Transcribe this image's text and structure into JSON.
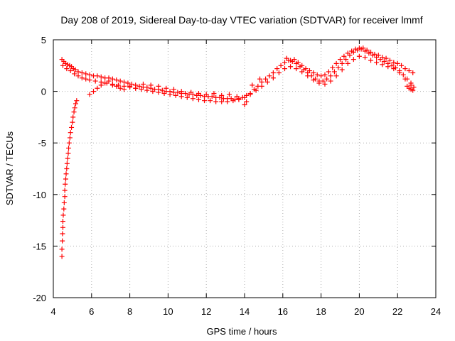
{
  "chart_data": {
    "type": "scatter",
    "title": "Day 208 of 2019, Sidereal Day-to-day VTEC variation (SDTVAR) for receiver lmmf",
    "xlabel": "GPS time / hours",
    "ylabel": "SDTVAR / TECUs",
    "xlim": [
      4,
      24
    ],
    "ylim": [
      -20,
      5
    ],
    "xticks": [
      4,
      6,
      8,
      10,
      12,
      14,
      16,
      18,
      20,
      22,
      24
    ],
    "yticks": [
      -20,
      -15,
      -10,
      -5,
      0,
      5
    ],
    "xtick_labels": [
      "4",
      "6",
      "8",
      "10",
      "12",
      "14",
      "16",
      "18",
      "20",
      "22",
      "24"
    ],
    "ytick_labels": [
      "-20",
      "-15",
      "-10",
      "-5",
      "0",
      "5"
    ],
    "grid": true,
    "marker": "+",
    "series": [
      {
        "name": "SDTVAR",
        "color": "#ff0000",
        "points": [
          [
            4.45,
            -16.0
          ],
          [
            4.45,
            -15.3
          ],
          [
            4.47,
            -14.5
          ],
          [
            4.48,
            -13.8
          ],
          [
            4.5,
            -13.2
          ],
          [
            4.5,
            -12.6
          ],
          [
            4.52,
            -12.0
          ],
          [
            4.55,
            -11.4
          ],
          [
            4.57,
            -10.8
          ],
          [
            4.6,
            -10.2
          ],
          [
            4.6,
            -9.6
          ],
          [
            4.62,
            -9.0
          ],
          [
            4.65,
            -8.5
          ],
          [
            4.67,
            -8.0
          ],
          [
            4.7,
            -7.5
          ],
          [
            4.72,
            -7.0
          ],
          [
            4.75,
            -6.5
          ],
          [
            4.78,
            -6.0
          ],
          [
            4.8,
            -5.5
          ],
          [
            4.83,
            -5.0
          ],
          [
            4.87,
            -4.5
          ],
          [
            4.9,
            -4.0
          ],
          [
            4.95,
            -3.5
          ],
          [
            5.0,
            -3.0
          ],
          [
            5.03,
            -2.5
          ],
          [
            5.08,
            -2.0
          ],
          [
            5.12,
            -1.6
          ],
          [
            5.17,
            -1.2
          ],
          [
            5.22,
            -0.9
          ],
          [
            4.45,
            3.1
          ],
          [
            4.55,
            2.9
          ],
          [
            4.65,
            2.7
          ],
          [
            4.75,
            2.6
          ],
          [
            4.85,
            2.5
          ],
          [
            4.95,
            2.4
          ],
          [
            5.05,
            2.2
          ],
          [
            5.15,
            2.1
          ],
          [
            5.3,
            1.9
          ],
          [
            5.5,
            1.8
          ],
          [
            5.7,
            1.7
          ],
          [
            5.9,
            1.6
          ],
          [
            6.1,
            1.5
          ],
          [
            6.3,
            1.5
          ],
          [
            6.5,
            1.4
          ],
          [
            6.7,
            1.3
          ],
          [
            6.9,
            1.3
          ],
          [
            7.1,
            1.2
          ],
          [
            7.3,
            1.1
          ],
          [
            7.5,
            1.0
          ],
          [
            7.7,
            0.9
          ],
          [
            7.9,
            0.8
          ],
          [
            8.1,
            0.7
          ],
          [
            8.3,
            0.6
          ],
          [
            8.5,
            0.5
          ],
          [
            8.7,
            0.4
          ],
          [
            8.9,
            0.4
          ],
          [
            9.1,
            0.3
          ],
          [
            9.3,
            0.2
          ],
          [
            9.5,
            0.2
          ],
          [
            9.7,
            0.1
          ],
          [
            9.9,
            0.0
          ],
          [
            10.1,
            0.0
          ],
          [
            10.3,
            -0.1
          ],
          [
            10.5,
            -0.1
          ],
          [
            10.7,
            -0.2
          ],
          [
            10.9,
            -0.2
          ],
          [
            11.1,
            -0.3
          ],
          [
            11.3,
            -0.3
          ],
          [
            11.5,
            -0.4
          ],
          [
            11.7,
            -0.4
          ],
          [
            11.9,
            -0.5
          ],
          [
            12.1,
            -0.5
          ],
          [
            12.3,
            -0.5
          ],
          [
            12.5,
            -0.6
          ],
          [
            12.7,
            -0.6
          ],
          [
            12.9,
            -0.7
          ],
          [
            13.1,
            -0.7
          ],
          [
            13.3,
            -0.7
          ],
          [
            13.5,
            -0.8
          ],
          [
            13.7,
            -0.7
          ],
          [
            13.9,
            -0.6
          ],
          [
            14.1,
            -0.4
          ],
          [
            14.3,
            -0.2
          ],
          [
            14.5,
            0.2
          ],
          [
            14.7,
            0.5
          ],
          [
            14.9,
            0.9
          ],
          [
            15.1,
            1.2
          ],
          [
            15.3,
            1.5
          ],
          [
            15.5,
            1.8
          ],
          [
            15.7,
            2.2
          ],
          [
            15.9,
            2.5
          ],
          [
            16.1,
            2.8
          ],
          [
            16.3,
            3.0
          ],
          [
            16.5,
            2.9
          ],
          [
            16.7,
            2.7
          ],
          [
            16.9,
            2.4
          ],
          [
            17.1,
            2.1
          ],
          [
            17.3,
            1.8
          ],
          [
            17.5,
            1.5
          ],
          [
            17.7,
            1.2
          ],
          [
            17.9,
            1.0
          ],
          [
            18.1,
            1.0
          ],
          [
            18.3,
            1.2
          ],
          [
            18.5,
            1.5
          ],
          [
            18.7,
            1.9
          ],
          [
            18.9,
            2.3
          ],
          [
            19.1,
            2.7
          ],
          [
            19.3,
            3.1
          ],
          [
            19.5,
            3.5
          ],
          [
            19.7,
            3.8
          ],
          [
            19.9,
            4.0
          ],
          [
            20.1,
            4.1
          ],
          [
            20.3,
            3.9
          ],
          [
            20.5,
            3.7
          ],
          [
            20.7,
            3.5
          ],
          [
            20.9,
            3.3
          ],
          [
            21.1,
            3.1
          ],
          [
            21.3,
            2.9
          ],
          [
            21.5,
            2.7
          ],
          [
            21.7,
            2.5
          ],
          [
            21.9,
            2.3
          ],
          [
            22.1,
            2.0
          ],
          [
            22.3,
            1.6
          ],
          [
            22.5,
            1.2
          ],
          [
            22.7,
            0.8
          ],
          [
            22.85,
            0.4
          ],
          [
            4.5,
            2.5
          ],
          [
            4.7,
            2.2
          ],
          [
            4.9,
            2.0
          ],
          [
            5.1,
            1.7
          ],
          [
            5.3,
            1.5
          ],
          [
            5.5,
            1.3
          ],
          [
            5.7,
            1.2
          ],
          [
            5.9,
            1.1
          ],
          [
            6.2,
            1.0
          ],
          [
            6.5,
            0.9
          ],
          [
            6.8,
            0.8
          ],
          [
            7.1,
            0.7
          ],
          [
            7.4,
            0.6
          ],
          [
            7.7,
            0.5
          ],
          [
            8.0,
            0.4
          ],
          [
            8.3,
            0.3
          ],
          [
            8.6,
            0.2
          ],
          [
            8.9,
            0.1
          ],
          [
            9.2,
            0.0
          ],
          [
            9.5,
            -0.1
          ],
          [
            9.8,
            -0.2
          ],
          [
            10.1,
            -0.3
          ],
          [
            10.4,
            -0.4
          ],
          [
            10.7,
            -0.5
          ],
          [
            11.0,
            -0.6
          ],
          [
            11.3,
            -0.7
          ],
          [
            11.6,
            -0.8
          ],
          [
            11.9,
            -0.9
          ],
          [
            12.2,
            -0.9
          ],
          [
            12.5,
            -1.0
          ],
          [
            12.8,
            -1.0
          ],
          [
            13.1,
            -1.0
          ],
          [
            13.4,
            -0.9
          ],
          [
            13.7,
            -0.8
          ],
          [
            14.0,
            -0.6
          ],
          [
            14.3,
            -0.3
          ],
          [
            14.6,
            0.1
          ],
          [
            14.9,
            0.5
          ],
          [
            15.2,
            0.9
          ],
          [
            15.5,
            1.3
          ],
          [
            15.8,
            1.8
          ],
          [
            16.1,
            2.2
          ],
          [
            16.4,
            2.4
          ],
          [
            16.7,
            2.2
          ],
          [
            17.0,
            1.9
          ],
          [
            17.3,
            1.5
          ],
          [
            17.6,
            1.1
          ],
          [
            17.9,
            0.8
          ],
          [
            18.2,
            0.7
          ],
          [
            18.5,
            1.0
          ],
          [
            18.8,
            1.5
          ],
          [
            19.1,
            2.1
          ],
          [
            19.4,
            2.7
          ],
          [
            19.7,
            3.1
          ],
          [
            20.0,
            3.4
          ],
          [
            20.3,
            3.3
          ],
          [
            20.6,
            3.0
          ],
          [
            20.9,
            2.8
          ],
          [
            21.2,
            2.6
          ],
          [
            21.5,
            2.4
          ],
          [
            21.8,
            2.2
          ],
          [
            22.1,
            1.8
          ],
          [
            22.4,
            1.2
          ],
          [
            22.7,
            0.6
          ],
          [
            5.9,
            -0.3
          ],
          [
            6.1,
            0.0
          ],
          [
            6.3,
            0.3
          ],
          [
            6.5,
            0.6
          ],
          [
            6.7,
            0.8
          ],
          [
            6.9,
            1.0
          ],
          [
            7.1,
            0.6
          ],
          [
            7.3,
            0.5
          ],
          [
            7.5,
            0.3
          ],
          [
            7.7,
            0.2
          ],
          [
            8.0,
            0.5
          ],
          [
            8.3,
            0.3
          ],
          [
            8.7,
            0.7
          ],
          [
            9.1,
            0.6
          ],
          [
            9.5,
            0.5
          ],
          [
            9.9,
            0.3
          ],
          [
            10.3,
            0.2
          ],
          [
            10.7,
            0.0
          ],
          [
            11.2,
            -0.1
          ],
          [
            11.6,
            -0.2
          ],
          [
            12.0,
            -0.3
          ],
          [
            12.4,
            -0.2
          ],
          [
            12.8,
            -0.4
          ],
          [
            13.2,
            -0.3
          ],
          [
            13.6,
            -0.5
          ],
          [
            14.0,
            -1.3
          ],
          [
            14.1,
            -1.0
          ],
          [
            14.4,
            0.6
          ],
          [
            14.8,
            1.2
          ],
          [
            16.2,
            3.2
          ],
          [
            16.4,
            3.0
          ],
          [
            16.6,
            3.1
          ],
          [
            16.8,
            2.8
          ],
          [
            17.0,
            2.5
          ],
          [
            17.2,
            2.2
          ],
          [
            17.4,
            2.0
          ],
          [
            17.6,
            1.8
          ],
          [
            17.8,
            1.6
          ],
          [
            18.0,
            1.5
          ],
          [
            18.2,
            1.6
          ],
          [
            18.4,
            1.9
          ],
          [
            18.6,
            2.3
          ],
          [
            18.8,
            2.7
          ],
          [
            19.0,
            3.1
          ],
          [
            19.2,
            3.4
          ],
          [
            19.4,
            3.7
          ],
          [
            19.6,
            3.9
          ],
          [
            19.8,
            4.1
          ],
          [
            20.0,
            4.2
          ],
          [
            20.2,
            4.2
          ],
          [
            20.4,
            4.0
          ],
          [
            20.6,
            3.8
          ],
          [
            20.8,
            3.6
          ],
          [
            21.0,
            3.5
          ],
          [
            21.2,
            3.3
          ],
          [
            21.4,
            3.2
          ],
          [
            21.6,
            3.0
          ],
          [
            21.8,
            2.8
          ],
          [
            22.0,
            2.7
          ],
          [
            22.2,
            2.5
          ],
          [
            22.4,
            2.2
          ],
          [
            22.6,
            2.0
          ],
          [
            22.8,
            1.8
          ],
          [
            22.5,
            0.5
          ],
          [
            22.6,
            0.3
          ],
          [
            22.7,
            0.2
          ],
          [
            22.8,
            0.1
          ]
        ]
      }
    ]
  }
}
